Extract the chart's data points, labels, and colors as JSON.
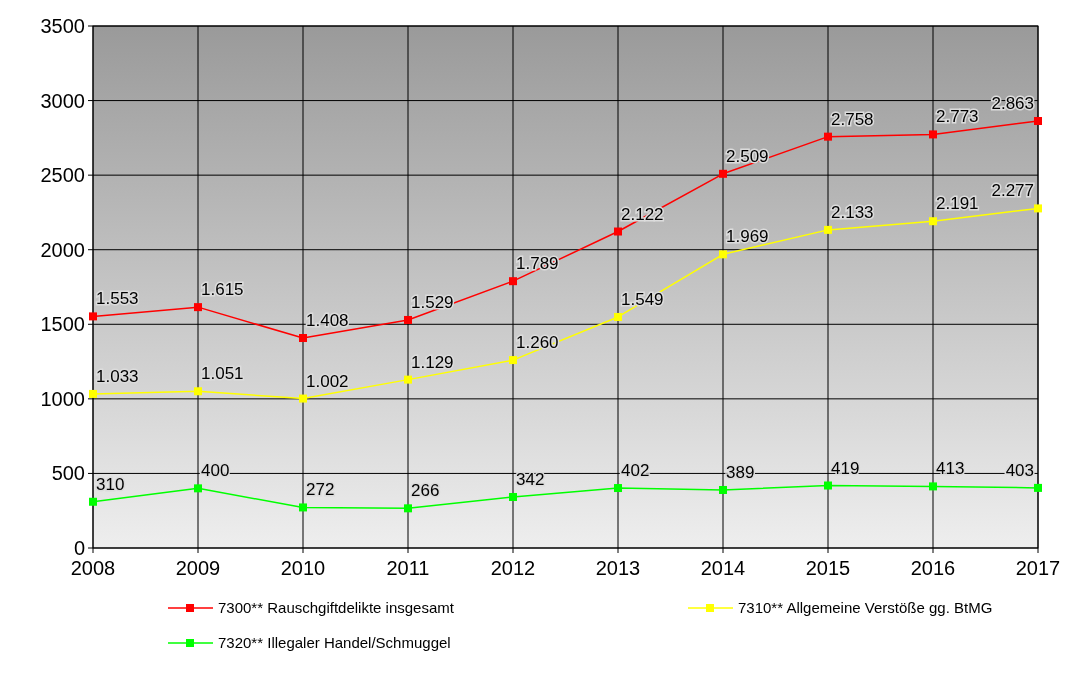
{
  "chart_data": {
    "type": "line",
    "x": [
      2008,
      2009,
      2010,
      2011,
      2012,
      2013,
      2014,
      2015,
      2016,
      2017
    ],
    "xlim": [
      2008,
      2017
    ],
    "xticks": [
      2008,
      2009,
      2010,
      2011,
      2012,
      2013,
      2014,
      2015,
      2016,
      2017
    ],
    "ylim": [
      0,
      3500
    ],
    "yticks": [
      0,
      500,
      1000,
      1500,
      2000,
      2500,
      3000,
      3500
    ],
    "grid": true,
    "legend": "bottom",
    "marker": "square",
    "line_style": "solid",
    "series": [
      {
        "name": "7300** Rauschgiftdelikte insgesamt",
        "color": "#ff0000",
        "values": [
          1553,
          1615,
          1408,
          1529,
          1789,
          2122,
          2509,
          2758,
          2773,
          2863
        ],
        "value_labels": [
          "1.553",
          "1.615",
          "1.408",
          "1.529",
          "1.789",
          "2.122",
          "2.509",
          "2.758",
          "2.773",
          "2.863"
        ]
      },
      {
        "name": "7310** Allgemeine Verstöße gg. BtMG",
        "color": "#ffff00",
        "values": [
          1033,
          1051,
          1002,
          1129,
          1260,
          1549,
          1969,
          2133,
          2191,
          2277
        ],
        "value_labels": [
          "1.033",
          "1.051",
          "1.002",
          "1.129",
          "1.260",
          "1.549",
          "1.969",
          "2.133",
          "2.191",
          "2.277"
        ]
      },
      {
        "name": "7320** Illegaler Handel/Schmuggel",
        "color": "#00ff00",
        "values": [
          310,
          400,
          272,
          266,
          342,
          402,
          389,
          419,
          413,
          403
        ],
        "value_labels": [
          "310",
          "400",
          "272",
          "266",
          "342",
          "402",
          "389",
          "419",
          "413",
          "403"
        ]
      }
    ]
  }
}
